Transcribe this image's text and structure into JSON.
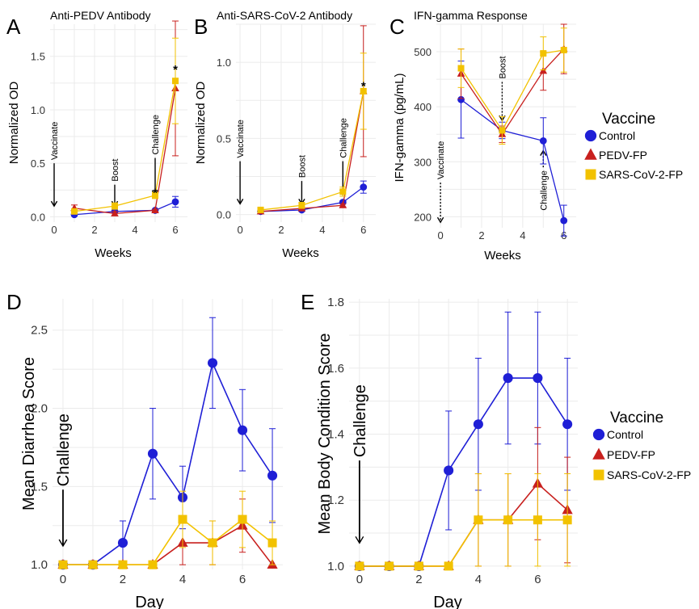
{
  "chart_data": [
    {
      "type": "line",
      "panel": "A",
      "title": "Anti-PEDV Antibody",
      "xlabel": "Weeks",
      "ylabel": "Normalized OD",
      "xlim": [
        -0.2,
        6.6
      ],
      "ylim": [
        -0.05,
        1.8
      ],
      "xticks": [
        0,
        2,
        4,
        6
      ],
      "yticks": [
        0.0,
        0.5,
        1.0,
        1.5
      ],
      "ytick_labels": [
        "0.0",
        "0.5",
        "1.0",
        "1.5"
      ],
      "x": [
        1,
        3,
        5,
        6
      ],
      "series": [
        {
          "name": "Control",
          "color": "#1f1fd6",
          "marker": "circle",
          "values": [
            0.02,
            0.05,
            0.06,
            0.14
          ],
          "err": [
            0.01,
            0.01,
            0.01,
            0.05
          ]
        },
        {
          "name": "PEDV-FP",
          "color": "#c8201e",
          "marker": "triangle",
          "values": [
            0.08,
            0.03,
            0.06,
            1.2
          ],
          "err": [
            0.03,
            0.02,
            0.01,
            0.63
          ]
        },
        {
          "name": "SARS-CoV-2-FP",
          "color": "#f2c200",
          "marker": "square",
          "values": [
            0.05,
            0.1,
            0.2,
            1.27
          ],
          "err": [
            0.02,
            0.03,
            0.03,
            0.4
          ]
        }
      ],
      "annotations": [
        {
          "text": "Vaccinate",
          "x": 0,
          "arrow_from": 0.5,
          "arrow_to": 0.1
        },
        {
          "text": "Boost",
          "x": 3,
          "arrow_from": 0.3,
          "arrow_to": 0.1
        },
        {
          "text": "Challenge",
          "x": 5,
          "arrow_from": 0.55,
          "arrow_to": 0.2
        }
      ],
      "stars": [
        {
          "text": "*",
          "x": 5,
          "y": 0.25
        },
        {
          "text": "*",
          "x": 6,
          "y": 1.4
        }
      ]
    },
    {
      "type": "line",
      "panel": "B",
      "title": "Anti-SARS-CoV-2 Antibody",
      "xlabel": "Weeks",
      "ylabel": "Normalized OD",
      "xlim": [
        -0.2,
        6.6
      ],
      "ylim": [
        -0.05,
        1.25
      ],
      "xticks": [
        0,
        2,
        4,
        6
      ],
      "yticks": [
        0.0,
        0.5,
        1.0
      ],
      "ytick_labels": [
        "0.0",
        "0.5",
        "1.0"
      ],
      "x": [
        1,
        3,
        5,
        6
      ],
      "series": [
        {
          "name": "Control",
          "color": "#1f1fd6",
          "marker": "circle",
          "values": [
            0.02,
            0.03,
            0.08,
            0.18
          ],
          "err": [
            0.01,
            0.01,
            0.01,
            0.04
          ]
        },
        {
          "name": "PEDV-FP",
          "color": "#c8201e",
          "marker": "triangle",
          "values": [
            0.02,
            0.04,
            0.06,
            0.81
          ],
          "err": [
            0.01,
            0.01,
            0.01,
            0.43
          ]
        },
        {
          "name": "SARS-CoV-2-FP",
          "color": "#f2c200",
          "marker": "square",
          "values": [
            0.03,
            0.06,
            0.15,
            0.81
          ],
          "err": [
            0.01,
            0.02,
            0.03,
            0.25
          ]
        }
      ],
      "annotations": [
        {
          "text": "Vaccinate",
          "x": 0,
          "arrow_from": 0.35,
          "arrow_to": 0.07
        },
        {
          "text": "Boost",
          "x": 3,
          "arrow_from": 0.22,
          "arrow_to": 0.07
        },
        {
          "text": "Challenge",
          "x": 5,
          "arrow_from": 0.35,
          "arrow_to": 0.13
        }
      ],
      "stars": [
        {
          "text": "*",
          "x": 6,
          "y": 0.86
        }
      ]
    },
    {
      "type": "line",
      "panel": "C",
      "title": "IFN-gamma Response",
      "xlabel": "Weeks",
      "ylabel": "IFN-gamma (pg/mL)",
      "xlim": [
        -0.2,
        6.6
      ],
      "ylim": [
        180,
        550
      ],
      "xticks": [
        0,
        2,
        4,
        6
      ],
      "yticks": [
        200,
        300,
        400,
        500
      ],
      "ytick_labels": [
        "200",
        "300",
        "400",
        "500"
      ],
      "x": [
        1,
        3,
        5,
        6
      ],
      "series": [
        {
          "name": "Control",
          "color": "#1f1fd6",
          "marker": "circle",
          "values": [
            413,
            357,
            338,
            193
          ],
          "err": [
            70,
            15,
            42,
            28
          ]
        },
        {
          "name": "PEDV-FP",
          "color": "#c8201e",
          "marker": "triangle",
          "values": [
            460,
            350,
            465,
            505
          ],
          "err": [
            45,
            15,
            35,
            45
          ]
        },
        {
          "name": "SARS-CoV-2-FP",
          "color": "#f2c200",
          "marker": "square",
          "values": [
            470,
            357,
            497,
            503
          ],
          "err": [
            35,
            25,
            30,
            40
          ]
        }
      ],
      "annotations": [
        {
          "text": "Vaccinate",
          "x": 0,
          "arrow_from": 262,
          "arrow_to": 190,
          "dashed": true
        },
        {
          "text": "Boost",
          "x": 3,
          "arrow_from": 445,
          "arrow_to": 375,
          "dashed": true
        },
        {
          "text": "Challenge",
          "x": 5,
          "arrow_from": 290,
          "arrow_to": 320,
          "dashed": true,
          "up": true
        }
      ],
      "stars": []
    },
    {
      "type": "line",
      "panel": "D",
      "xlabel": "Day",
      "ylabel": "Mean Diarrhea Score",
      "xlim": [
        -0.35,
        7.35
      ],
      "ylim": [
        0.97,
        2.7
      ],
      "xticks": [
        0,
        2,
        4,
        6
      ],
      "yticks": [
        1.0,
        1.5,
        2.0,
        2.5
      ],
      "ytick_labels": [
        "1.0",
        "1.5",
        "2.0",
        "2.5"
      ],
      "x": [
        0,
        1,
        2,
        3,
        4,
        5,
        6,
        7
      ],
      "series": [
        {
          "name": "Control",
          "color": "#1f1fd6",
          "marker": "circle",
          "values": [
            1.0,
            1.0,
            1.14,
            1.71,
            1.43,
            2.29,
            1.86,
            1.57
          ],
          "err": [
            0,
            0,
            0.14,
            0.29,
            0.2,
            0.29,
            0.26,
            0.3
          ]
        },
        {
          "name": "PEDV-FP",
          "color": "#c8201e",
          "marker": "triangle",
          "values": [
            1.0,
            1.0,
            1.0,
            1.0,
            1.14,
            1.14,
            1.25,
            1.0
          ],
          "err": [
            0,
            0,
            0,
            0,
            0.14,
            0.14,
            0.17,
            0
          ]
        },
        {
          "name": "SARS-CoV-2-FP",
          "color": "#f2c200",
          "marker": "square",
          "values": [
            1.0,
            1.0,
            1.0,
            1.0,
            1.29,
            1.14,
            1.29,
            1.14
          ],
          "err": [
            0,
            0,
            0,
            0,
            0.18,
            0.14,
            0.18,
            0.14
          ]
        }
      ],
      "annotations": [
        {
          "text": "Challenge",
          "x": 0,
          "arrow_from": 1.48,
          "arrow_to": 1.12
        }
      ],
      "stars": []
    },
    {
      "type": "line",
      "panel": "E",
      "xlabel": "Day",
      "ylabel": "Mean Body Condition Score",
      "xlim": [
        -0.35,
        7.35
      ],
      "ylim": [
        0.99,
        1.81
      ],
      "xticks": [
        0,
        2,
        4,
        6
      ],
      "yticks": [
        1.0,
        1.2,
        1.4,
        1.6,
        1.8
      ],
      "ytick_labels": [
        "1.0",
        "1.2",
        "1.4",
        "1.6",
        "1.8"
      ],
      "x": [
        0,
        1,
        2,
        3,
        4,
        5,
        6,
        7
      ],
      "series": [
        {
          "name": "Control",
          "color": "#1f1fd6",
          "marker": "circle",
          "values": [
            1.0,
            1.0,
            1.0,
            1.29,
            1.43,
            1.57,
            1.57,
            1.43
          ],
          "err": [
            0,
            0,
            0,
            0.18,
            0.2,
            0.2,
            0.2,
            0.2
          ]
        },
        {
          "name": "PEDV-FP",
          "color": "#c8201e",
          "marker": "triangle",
          "values": [
            1.0,
            1.0,
            1.0,
            1.0,
            1.14,
            1.14,
            1.25,
            1.17
          ],
          "err": [
            0,
            0,
            0,
            0,
            0.14,
            0.14,
            0.17,
            0.16
          ]
        },
        {
          "name": "SARS-CoV-2-FP",
          "color": "#f2c200",
          "marker": "square",
          "values": [
            1.0,
            1.0,
            1.0,
            1.0,
            1.14,
            1.14,
            1.14,
            1.14
          ],
          "err": [
            0,
            0,
            0,
            0,
            0.14,
            0.14,
            0.14,
            0.14
          ]
        }
      ],
      "annotations": [
        {
          "text": "Challenge",
          "x": 0,
          "arrow_from": 1.32,
          "arrow_to": 1.07
        }
      ],
      "stars": []
    }
  ],
  "legends": [
    {
      "title": "Vaccine",
      "entries": [
        {
          "label": "Control",
          "color": "#1f1fd6",
          "marker": "circle"
        },
        {
          "label": "PEDV-FP",
          "color": "#c8201e",
          "marker": "triangle"
        },
        {
          "label": "SARS-CoV-2-FP",
          "color": "#f2c200",
          "marker": "square"
        }
      ]
    },
    {
      "title": "Vaccine",
      "entries": [
        {
          "label": "Control",
          "color": "#1f1fd6",
          "marker": "circle"
        },
        {
          "label": "PEDV-FP",
          "color": "#c8201e",
          "marker": "triangle"
        },
        {
          "label": "SARS-CoV-2-FP",
          "color": "#f2c200",
          "marker": "square"
        }
      ]
    }
  ]
}
